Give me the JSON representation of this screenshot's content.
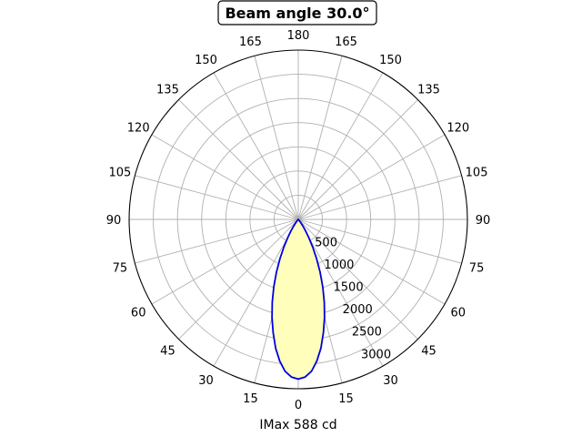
{
  "chart_data": {
    "type": "polar",
    "title": "Beam angle 30.0°",
    "xlabel": "IMax 588 cd",
    "angle_tick_labels": [
      "0",
      "15",
      "30",
      "45",
      "60",
      "75",
      "90",
      "105",
      "120",
      "135",
      "150",
      "165",
      "180",
      "165",
      "150",
      "135",
      "120",
      "105",
      "90",
      "75",
      "60",
      "45",
      "30",
      "15"
    ],
    "radial_tick_labels": [
      "500",
      "1000",
      "1500",
      "2000",
      "2500",
      "3000"
    ],
    "radial_ticks": [
      500,
      1000,
      1500,
      2000,
      2500,
      3000
    ],
    "rlim": [
      0,
      3500
    ],
    "grid": true,
    "series": [
      {
        "angles_deg": [
          0,
          2.5,
          5,
          7.5,
          10,
          12.5,
          15,
          17.5,
          20,
          22.5,
          25,
          27.5,
          30,
          32.5,
          35,
          37.5,
          40,
          42.5,
          45
        ],
        "values": [
          3300,
          3260,
          3150,
          2950,
          2700,
          2400,
          2100,
          1790,
          1480,
          1180,
          900,
          650,
          440,
          280,
          160,
          80,
          35,
          10,
          0
        ]
      }
    ],
    "colors": {
      "line": "#0000dd",
      "fill": "#ffffbb",
      "grid": "#b0b0b0",
      "outer_circle": "#000000"
    }
  }
}
